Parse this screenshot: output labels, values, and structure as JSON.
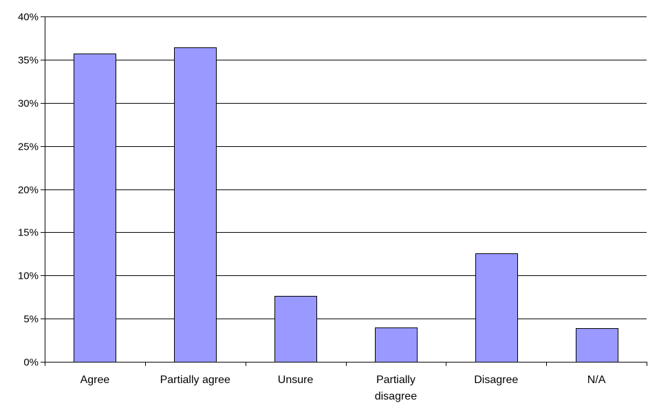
{
  "chart_data": {
    "type": "bar",
    "categories": [
      "Agree",
      "Partially agree",
      "Unsure",
      "Partially disagree",
      "Disagree",
      "N/A"
    ],
    "category_lines": [
      [
        "Agree"
      ],
      [
        "Partially agree"
      ],
      [
        "Unsure"
      ],
      [
        "Partially",
        "disagree"
      ],
      [
        "Disagree"
      ],
      [
        "N/A"
      ]
    ],
    "values": [
      35.7,
      36.4,
      7.6,
      4.0,
      12.6,
      3.9
    ],
    "ylim": [
      0,
      40
    ],
    "y_ticks": [
      0,
      5,
      10,
      15,
      20,
      25,
      30,
      35,
      40
    ],
    "y_tick_labels": [
      "0%",
      "5%",
      "10%",
      "15%",
      "20%",
      "25%",
      "30%",
      "35%",
      "40%"
    ],
    "grid": true,
    "legend": "none",
    "colors": {
      "bar_fill": "#9999ff",
      "bar_stroke": "#000000",
      "gridline": "#000000",
      "axis": "#000000"
    }
  }
}
